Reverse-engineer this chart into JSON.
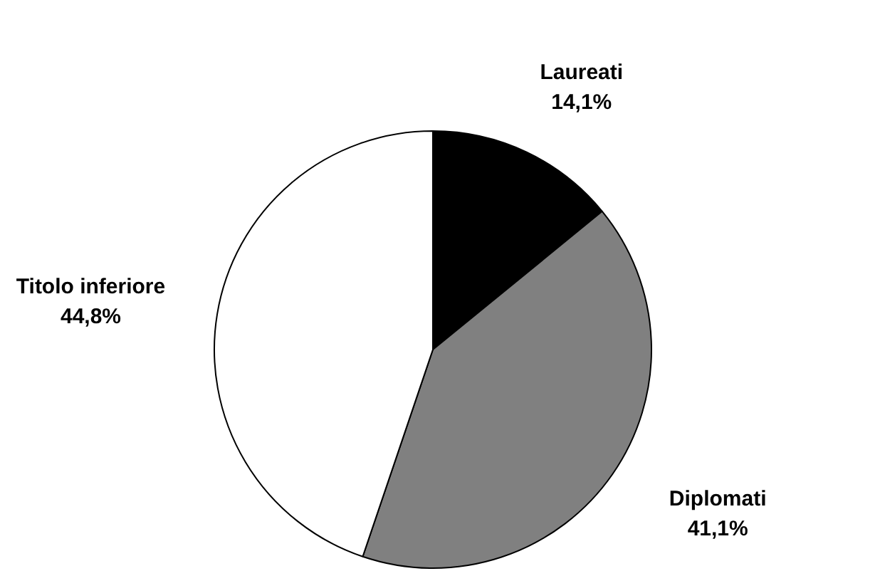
{
  "chart_data": {
    "type": "pie",
    "categories": [
      "Laureati",
      "Diplomati",
      "Titolo inferiore"
    ],
    "values": [
      14.1,
      41.1,
      44.8
    ],
    "colors": [
      "#000000",
      "#808080",
      "#ffffff"
    ],
    "value_labels": [
      "14,1%",
      "41,1%",
      "44,8%"
    ],
    "legend": false
  }
}
